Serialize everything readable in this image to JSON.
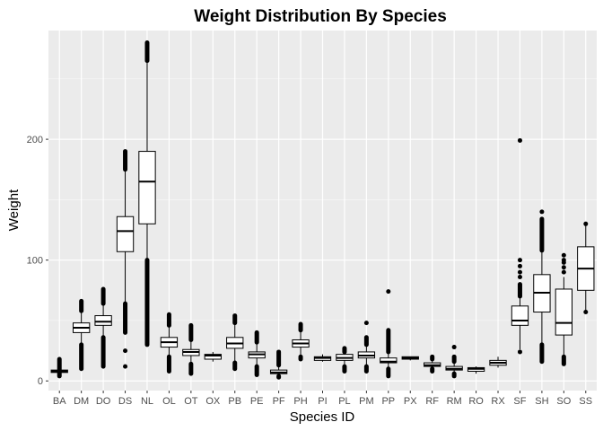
{
  "chart_data": {
    "type": "boxplot",
    "title": "Weight Distribution By Species",
    "xlabel": "Species ID",
    "ylabel": "Weight",
    "ylim": [
      -8,
      290
    ],
    "yticks": [
      0,
      100,
      200
    ],
    "grid": true,
    "legend": "none",
    "colors": {
      "panel_bg": "#ebebeb",
      "grid_major": "#ffffff",
      "box_fill": "#ffffff",
      "box_stroke": "#000000",
      "outlier": "#000000",
      "tick_text": "#4d4d4d"
    },
    "categories": [
      "BA",
      "DM",
      "DO",
      "DS",
      "NL",
      "OL",
      "OT",
      "OX",
      "PB",
      "PE",
      "PF",
      "PH",
      "PI",
      "PL",
      "PM",
      "PP",
      "PX",
      "RF",
      "RM",
      "RO",
      "RX",
      "SF",
      "SH",
      "SO",
      "SS"
    ],
    "boxes": [
      {
        "id": "BA",
        "q1": 7,
        "median": 8,
        "q3": 9,
        "whisker_low": 6,
        "whisker_high": 11,
        "outliers_dense": [
          [
            4,
            18
          ]
        ]
      },
      {
        "id": "DM",
        "q1": 40,
        "median": 44,
        "q3": 48,
        "whisker_low": 30,
        "whisker_high": 58,
        "outliers_dense": [
          [
            10,
            30
          ],
          [
            58,
            66
          ]
        ]
      },
      {
        "id": "DO",
        "q1": 46,
        "median": 49,
        "q3": 54,
        "whisker_low": 36,
        "whisker_high": 64,
        "outliers_dense": [
          [
            12,
            36
          ],
          [
            64,
            76
          ]
        ]
      },
      {
        "id": "DS",
        "q1": 107,
        "median": 124,
        "q3": 136,
        "whisker_low": 64,
        "whisker_high": 175,
        "outliers_dense": [
          [
            40,
            64
          ],
          [
            175,
            190
          ]
        ],
        "outliers": [
          12,
          25
        ]
      },
      {
        "id": "NL",
        "q1": 130,
        "median": 165,
        "q3": 190,
        "whisker_low": 100,
        "whisker_high": 265,
        "outliers_dense": [
          [
            30,
            100
          ],
          [
            265,
            280
          ]
        ]
      },
      {
        "id": "OL",
        "q1": 28,
        "median": 32,
        "q3": 36,
        "whisker_low": 20,
        "whisker_high": 46,
        "outliers_dense": [
          [
            8,
            20
          ],
          [
            46,
            55
          ]
        ]
      },
      {
        "id": "OT",
        "q1": 21,
        "median": 24,
        "q3": 26,
        "whisker_low": 14,
        "whisker_high": 34,
        "outliers_dense": [
          [
            6,
            14
          ],
          [
            34,
            46
          ]
        ]
      },
      {
        "id": "OX",
        "q1": 18,
        "median": 21,
        "q3": 22,
        "whisker_low": 16,
        "whisker_high": 24,
        "outliers_dense": []
      },
      {
        "id": "PB",
        "q1": 27,
        "median": 31,
        "q3": 36,
        "whisker_low": 15,
        "whisker_high": 48,
        "outliers_dense": [
          [
            10,
            15
          ],
          [
            48,
            54
          ]
        ]
      },
      {
        "id": "PE",
        "q1": 19,
        "median": 22,
        "q3": 24,
        "whisker_low": 12,
        "whisker_high": 32,
        "outliers_dense": [
          [
            5,
            12
          ],
          [
            32,
            40
          ]
        ]
      },
      {
        "id": "PF",
        "q1": 6,
        "median": 7,
        "q3": 9,
        "whisker_low": 4,
        "whisker_high": 13,
        "outliers_dense": [
          [
            3,
            4
          ],
          [
            13,
            24
          ]
        ]
      },
      {
        "id": "PH",
        "q1": 28,
        "median": 31,
        "q3": 34,
        "whisker_low": 20,
        "whisker_high": 42,
        "outliers_dense": [
          [
            18,
            20
          ],
          [
            42,
            47
          ]
        ]
      },
      {
        "id": "PI",
        "q1": 17,
        "median": 19,
        "q3": 20,
        "whisker_low": 16,
        "whisker_high": 22,
        "outliers_dense": []
      },
      {
        "id": "PL",
        "q1": 17,
        "median": 19,
        "q3": 22,
        "whisker_low": 12,
        "whisker_high": 24,
        "outliers_dense": [
          [
            8,
            12
          ],
          [
            24,
            27
          ]
        ]
      },
      {
        "id": "PM",
        "q1": 19,
        "median": 21,
        "q3": 24,
        "whisker_low": 12,
        "whisker_high": 30,
        "outliers_dense": [
          [
            8,
            12
          ],
          [
            30,
            36
          ]
        ],
        "outliers": [
          48
        ]
      },
      {
        "id": "PP",
        "q1": 15,
        "median": 16,
        "q3": 19,
        "whisker_low": 10,
        "whisker_high": 24,
        "outliers_dense": [
          [
            4,
            10
          ],
          [
            24,
            42
          ]
        ],
        "outliers": [
          74
        ]
      },
      {
        "id": "PX",
        "q1": 18,
        "median": 19,
        "q3": 20,
        "whisker_low": 17,
        "whisker_high": 20,
        "outliers_dense": []
      },
      {
        "id": "RF",
        "q1": 12,
        "median": 13,
        "q3": 15,
        "whisker_low": 10,
        "whisker_high": 18,
        "outliers_dense": [
          [
            8,
            10
          ],
          [
            18,
            20
          ]
        ]
      },
      {
        "id": "RM",
        "q1": 9,
        "median": 10,
        "q3": 12,
        "whisker_low": 6,
        "whisker_high": 16,
        "outliers_dense": [
          [
            4,
            6
          ],
          [
            16,
            20
          ]
        ],
        "outliers": [
          28
        ]
      },
      {
        "id": "RO",
        "q1": 8,
        "median": 10,
        "q3": 11,
        "whisker_low": 6,
        "whisker_high": 12,
        "outliers_dense": []
      },
      {
        "id": "RX",
        "q1": 13,
        "median": 15,
        "q3": 17,
        "whisker_low": 11,
        "whisker_high": 20,
        "outliers_dense": []
      },
      {
        "id": "SF",
        "q1": 46,
        "median": 50,
        "q3": 62,
        "whisker_low": 26,
        "whisker_high": 70,
        "outliers_dense": [
          [
            70,
            80
          ]
        ],
        "outliers": [
          24,
          86,
          90,
          95,
          100,
          199
        ]
      },
      {
        "id": "SH",
        "q1": 57,
        "median": 73,
        "q3": 88,
        "whisker_low": 30,
        "whisker_high": 108,
        "outliers_dense": [
          [
            16,
            30
          ],
          [
            108,
            134
          ]
        ],
        "outliers": [
          140
        ]
      },
      {
        "id": "SO",
        "q1": 38,
        "median": 48,
        "q3": 76,
        "whisker_low": 20,
        "whisker_high": 86,
        "outliers_dense": [
          [
            14,
            20
          ]
        ],
        "outliers": [
          90,
          94,
          98,
          100,
          104
        ]
      },
      {
        "id": "SS",
        "q1": 75,
        "median": 93,
        "q3": 111,
        "whisker_low": 57,
        "whisker_high": 130,
        "outliers_dense": [],
        "outliers": [
          57,
          130
        ]
      }
    ]
  }
}
